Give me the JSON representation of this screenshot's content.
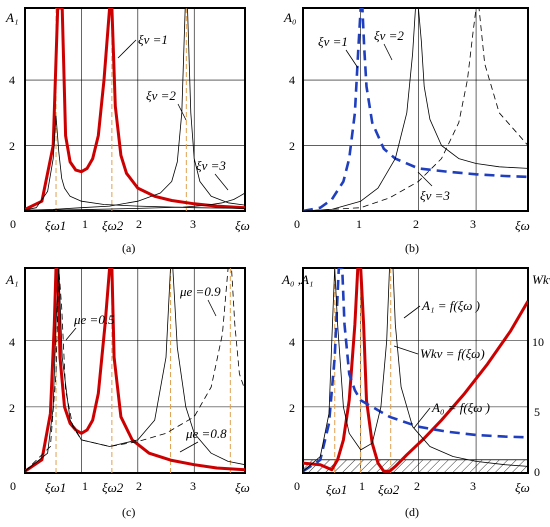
{
  "chart_data": [
    {
      "type": "line",
      "caption": "(a)",
      "ylabel": "A₁",
      "xlabel": "ξω",
      "origin_label": "0",
      "ylim": [
        0,
        6.2
      ],
      "xlim": [
        0,
        3.9
      ],
      "x_ticks": [
        "1",
        "2",
        "3"
      ],
      "y_ticks": [
        "2",
        "4"
      ],
      "special_ticks": [
        "ξω1",
        "ξω2"
      ],
      "annotations": [
        "ξv =1",
        "ξv =2",
        "ξv =3"
      ],
      "series": [
        {
          "style": "red-thick",
          "x": [
            0,
            0.3,
            0.5,
            0.58,
            0.6,
            0.66,
            0.72,
            0.8,
            0.9,
            1.0,
            1.1,
            1.2,
            1.3,
            1.4,
            1.5,
            1.54,
            1.6,
            1.7,
            1.8,
            2.0,
            2.3,
            2.6,
            3.0,
            3.4,
            3.9
          ],
          "y": [
            0.05,
            0.3,
            2.0,
            6.2,
            6.2,
            6.2,
            2.3,
            1.5,
            1.25,
            1.2,
            1.3,
            1.6,
            2.3,
            4.0,
            6.2,
            6.2,
            3.2,
            1.7,
            1.15,
            0.7,
            0.45,
            0.32,
            0.22,
            0.15,
            0.1
          ]
        },
        {
          "style": "black-thin",
          "x": [
            0,
            0.2,
            0.4,
            0.5,
            0.55,
            0.6,
            0.65,
            0.7,
            0.8,
            1.0,
            1.4,
            2.0,
            3.0,
            3.9
          ],
          "y": [
            0.03,
            0.1,
            0.6,
            1.6,
            2.9,
            1.8,
            1.0,
            0.7,
            0.45,
            0.3,
            0.2,
            0.15,
            0.1,
            0.08
          ]
        },
        {
          "style": "black-thin",
          "x": [
            0,
            0.5,
            1.0,
            1.5,
            2.0,
            2.4,
            2.6,
            2.7,
            2.78,
            2.84,
            2.86,
            2.88,
            2.94,
            3.0,
            3.1,
            3.3,
            3.6,
            3.9
          ],
          "y": [
            0.02,
            0.05,
            0.1,
            0.15,
            0.3,
            0.55,
            0.9,
            1.5,
            3.0,
            6.2,
            6.2,
            6.2,
            3.0,
            1.6,
            0.9,
            0.45,
            0.25,
            0.18
          ]
        },
        {
          "style": "black-thin",
          "x": [
            0,
            1.0,
            2.0,
            2.8,
            3.2,
            3.5,
            3.7,
            3.8,
            3.9
          ],
          "y": [
            0.02,
            0.04,
            0.08,
            0.12,
            0.17,
            0.25,
            0.35,
            0.45,
            0.55
          ]
        }
      ],
      "vlines": [
        0.55,
        1.54,
        2.86
      ]
    },
    {
      "type": "line",
      "caption": "(b)",
      "ylabel": "A₀",
      "xlabel": "ξω",
      "origin_label": "0",
      "ylim": [
        0,
        6.2
      ],
      "xlim": [
        0,
        3.9
      ],
      "x_ticks": [
        "1",
        "2",
        "3"
      ],
      "y_ticks": [
        "2",
        "4"
      ],
      "annotations": [
        "ξv =1",
        "ξv =2",
        "ξv =3"
      ],
      "series": [
        {
          "style": "blue-dash",
          "x": [
            0,
            0.3,
            0.5,
            0.7,
            0.8,
            0.9,
            0.96,
            1.0,
            1.03,
            1.06,
            1.1,
            1.2,
            1.4,
            1.6,
            2.0,
            2.5,
            3.0,
            3.5,
            3.9
          ],
          "y": [
            0,
            0.1,
            0.35,
            0.9,
            1.6,
            3.0,
            5.0,
            6.2,
            6.2,
            5.0,
            3.8,
            2.7,
            1.9,
            1.6,
            1.3,
            1.2,
            1.12,
            1.07,
            1.04
          ]
        },
        {
          "style": "black-thin",
          "x": [
            0,
            0.5,
            1.0,
            1.3,
            1.6,
            1.8,
            1.9,
            1.95,
            2.0,
            2.05,
            2.1,
            2.2,
            2.4,
            2.7,
            3.0,
            3.4,
            3.9
          ],
          "y": [
            0,
            0.05,
            0.3,
            0.7,
            1.6,
            3.0,
            4.8,
            6.2,
            6.2,
            5.2,
            3.8,
            2.8,
            2.0,
            1.6,
            1.45,
            1.35,
            1.3
          ]
        },
        {
          "style": "black-dash",
          "x": [
            0,
            1.0,
            1.5,
            2.0,
            2.4,
            2.7,
            2.85,
            2.95,
            3.0,
            3.05,
            3.15,
            3.4,
            3.7,
            3.9
          ],
          "y": [
            0,
            0.1,
            0.4,
            0.9,
            1.6,
            2.7,
            4.0,
            5.5,
            6.2,
            6.2,
            4.5,
            3.0,
            2.4,
            2.0
          ]
        }
      ],
      "vlines": []
    },
    {
      "type": "line",
      "caption": "(c)",
      "ylabel": "A₁",
      "xlabel": "ξω",
      "origin_label": "0",
      "ylim": [
        0,
        6.2
      ],
      "xlim": [
        0,
        3.9
      ],
      "x_ticks": [
        "1",
        "2",
        "3"
      ],
      "y_ticks": [
        "2",
        "4"
      ],
      "special_ticks": [
        "ξω1",
        "ξω2"
      ],
      "annotations": [
        "μe =0.5",
        "μe =0.9",
        "μe =0.8"
      ],
      "series": [
        {
          "style": "red-thick",
          "x": [
            0,
            0.3,
            0.45,
            0.52,
            0.55,
            0.58,
            0.62,
            0.7,
            0.8,
            0.9,
            1.0,
            1.1,
            1.2,
            1.3,
            1.42,
            1.5,
            1.54,
            1.58,
            1.7,
            1.9,
            2.2,
            2.6,
            3.0,
            3.4,
            3.9
          ],
          "y": [
            0.05,
            0.4,
            1.8,
            4.5,
            6.2,
            6.2,
            3.5,
            2.0,
            1.5,
            1.3,
            1.2,
            1.3,
            1.6,
            2.4,
            4.5,
            6.2,
            6.2,
            3.5,
            1.7,
            1.0,
            0.6,
            0.38,
            0.25,
            0.15,
            0.1
          ]
        },
        {
          "style": "black-thin",
          "x": [
            0,
            0.4,
            0.5,
            0.55,
            0.6,
            0.66,
            0.8,
            1.0,
            1.5,
            2.0,
            2.3,
            2.5,
            2.58,
            2.62,
            2.7,
            2.85,
            3.0,
            3.3,
            3.6,
            3.9
          ],
          "y": [
            0.05,
            0.6,
            2.0,
            4.5,
            6.2,
            3.5,
            1.6,
            1.0,
            0.8,
            1.0,
            1.6,
            3.5,
            6.2,
            6.2,
            3.8,
            2.0,
            1.2,
            0.6,
            0.35,
            0.25
          ]
        },
        {
          "style": "black-dash",
          "x": [
            0,
            0.45,
            0.55,
            0.6,
            0.65,
            0.72,
            0.85,
            1.0,
            1.5,
            2.0,
            2.5,
            3.0,
            3.3,
            3.5,
            3.6,
            3.66,
            3.72,
            3.8,
            3.9
          ],
          "y": [
            0.05,
            0.8,
            3.0,
            6.2,
            5.0,
            2.5,
            1.4,
            1.0,
            0.8,
            0.95,
            1.2,
            1.7,
            2.6,
            4.2,
            6.2,
            6.2,
            4.5,
            3.0,
            2.5
          ]
        }
      ],
      "vlines": [
        0.55,
        1.54,
        2.58,
        3.64
      ]
    },
    {
      "type": "line",
      "caption": "(d)",
      "ylabel": "A₀ ,A₁",
      "y2label": "Wkv",
      "xlabel": "ξω",
      "origin_label": "0",
      "ylim": [
        0,
        6.2
      ],
      "y2lim": [
        0,
        13.6
      ],
      "xlim": [
        0,
        3.9
      ],
      "x_ticks": [
        "1",
        "2",
        "3"
      ],
      "y_ticks": [
        "2",
        "4"
      ],
      "y2_ticks": [
        "0",
        "5",
        "10"
      ],
      "special_ticks": [
        "ξω1",
        "ξω2"
      ],
      "annotations": [
        "A₁ = f(ξω )",
        "Wkv = f(ξω)",
        "A₀ = f(ξω )"
      ],
      "series": [
        {
          "style": "red-thick",
          "x": [
            0,
            0.3,
            0.5,
            0.6,
            0.7,
            0.8,
            0.9,
            0.95,
            1.0,
            1.05,
            1.1,
            1.2,
            1.3,
            1.4,
            1.5,
            1.6,
            1.8,
            2.1,
            2.4,
            2.8,
            3.2,
            3.6,
            3.9
          ],
          "y": [
            0.3,
            0.25,
            0.1,
            0.4,
            1.0,
            2.2,
            4.5,
            6.2,
            6.2,
            4.5,
            2.2,
            0.9,
            0.3,
            0.05,
            0.05,
            0.2,
            0.55,
            1.05,
            1.6,
            2.4,
            3.3,
            4.3,
            5.2
          ]
        },
        {
          "style": "blue-dash",
          "x": [
            0,
            0.3,
            0.45,
            0.55,
            0.62,
            0.68,
            0.72,
            0.8,
            0.9,
            1.0,
            1.2,
            1.5,
            2.0,
            2.5,
            3.0,
            3.5,
            3.9
          ],
          "y": [
            0.05,
            0.4,
            1.5,
            3.5,
            6.2,
            6.2,
            4.5,
            3.0,
            2.5,
            2.2,
            2.0,
            1.7,
            1.4,
            1.25,
            1.15,
            1.1,
            1.08
          ]
        },
        {
          "style": "black-thin",
          "x": [
            0,
            0.3,
            0.45,
            0.5,
            0.55,
            0.6,
            0.7,
            0.8,
            1.0,
            1.2,
            1.35,
            1.45,
            1.5,
            1.56,
            1.6,
            1.7,
            1.9,
            2.2,
            2.6,
            3.0,
            3.5,
            3.9
          ],
          "y": [
            0.05,
            0.5,
            1.8,
            4.0,
            6.2,
            4.5,
            2.0,
            1.2,
            0.7,
            0.9,
            2.0,
            4.0,
            6.2,
            6.2,
            4.5,
            2.6,
            1.4,
            0.8,
            0.5,
            0.35,
            0.25,
            0.2
          ]
        }
      ],
      "vlines": [
        0.55,
        1.0,
        1.52
      ],
      "hatch_band": [
        0,
        0.4
      ]
    }
  ]
}
